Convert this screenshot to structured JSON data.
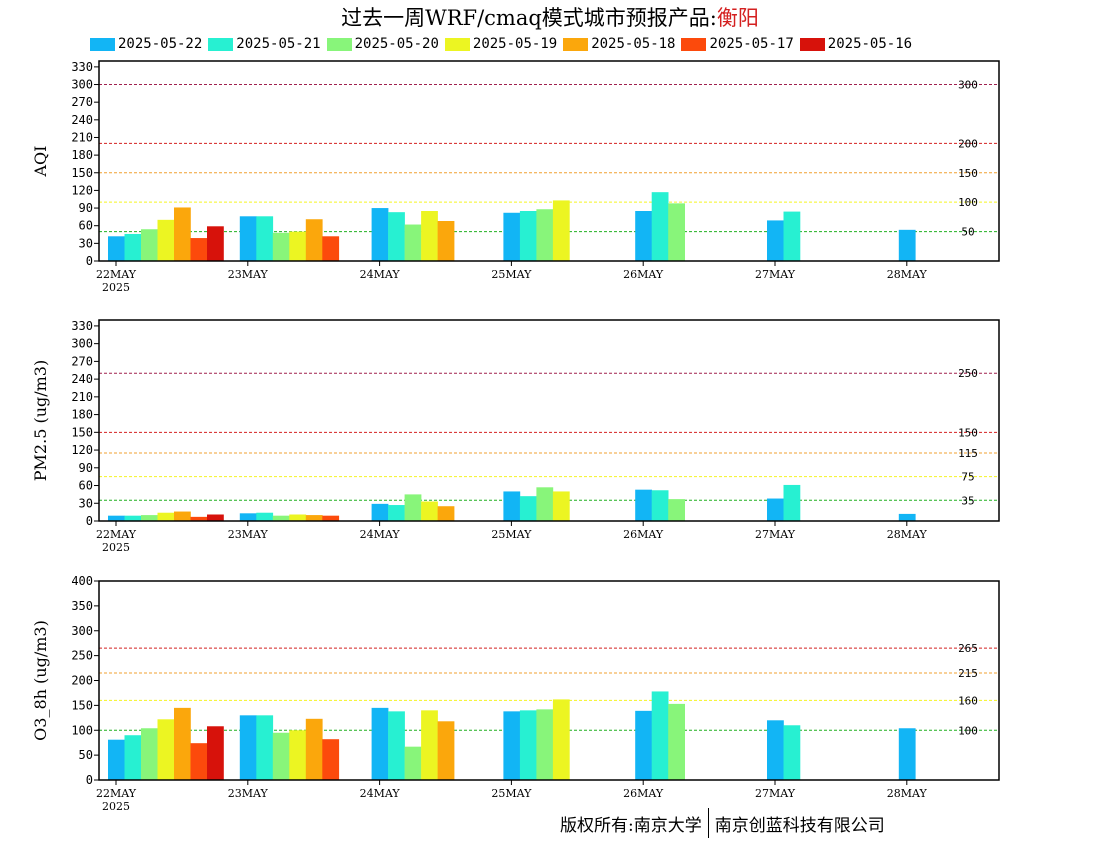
{
  "title": {
    "prefix": "过去一周WRF/cmaq模式城市预报产品:",
    "city": "衡阳",
    "city_color": "#d42020"
  },
  "footer": {
    "left": "版权所有:南京大学",
    "right": "南京创蓝科技有限公司"
  },
  "series_legend": [
    {
      "name": "2025-05-22",
      "color": "#12b5f5"
    },
    {
      "name": "2025-05-21",
      "color": "#27f0d2"
    },
    {
      "name": "2025-05-20",
      "color": "#88f57a"
    },
    {
      "name": "2025-05-19",
      "color": "#ecf522"
    },
    {
      "name": "2025-05-18",
      "color": "#fba70c"
    },
    {
      "name": "2025-05-17",
      "color": "#fc4a0c"
    },
    {
      "name": "2025-05-16",
      "color": "#d7120b"
    }
  ],
  "chart_data": [
    {
      "type": "bar",
      "ylabel": "AQI",
      "ylim": [
        0,
        340
      ],
      "yticks": [
        0,
        30,
        60,
        90,
        120,
        150,
        180,
        210,
        240,
        270,
        300,
        330
      ],
      "categories": [
        "22MAY",
        "23MAY",
        "24MAY",
        "25MAY",
        "26MAY",
        "27MAY",
        "28MAY"
      ],
      "first_category_sublabel": "2025",
      "thresholds": [
        {
          "value": 300,
          "label": "300",
          "color": "#a0204f"
        },
        {
          "value": 200,
          "label": "200",
          "color": "#d42020"
        },
        {
          "value": 150,
          "label": "150",
          "color": "#f0a030"
        },
        {
          "value": 100,
          "label": "100",
          "color": "#f5f520"
        },
        {
          "value": 50,
          "label": "50",
          "color": "#20b020"
        }
      ],
      "series": [
        {
          "name": "2025-05-22",
          "values": [
            42,
            76,
            90,
            82,
            85,
            69,
            53
          ]
        },
        {
          "name": "2025-05-21",
          "values": [
            46,
            76,
            83,
            85,
            117,
            84,
            null
          ]
        },
        {
          "name": "2025-05-20",
          "values": [
            54,
            48,
            62,
            88,
            98,
            null,
            null
          ]
        },
        {
          "name": "2025-05-19",
          "values": [
            70,
            50,
            85,
            103,
            null,
            null,
            null
          ]
        },
        {
          "name": "2025-05-18",
          "values": [
            91,
            71,
            68,
            null,
            null,
            null,
            null
          ]
        },
        {
          "name": "2025-05-17",
          "values": [
            39,
            42,
            null,
            null,
            null,
            null,
            null
          ]
        },
        {
          "name": "2025-05-16",
          "values": [
            59,
            null,
            null,
            null,
            null,
            null,
            null
          ]
        }
      ]
    },
    {
      "type": "bar",
      "ylabel": "PM2.5 (ug/m3)",
      "ylim": [
        0,
        340
      ],
      "yticks": [
        0,
        30,
        60,
        90,
        120,
        150,
        180,
        210,
        240,
        270,
        300,
        330
      ],
      "categories": [
        "22MAY",
        "23MAY",
        "24MAY",
        "25MAY",
        "26MAY",
        "27MAY",
        "28MAY"
      ],
      "first_category_sublabel": "2025",
      "thresholds": [
        {
          "value": 250,
          "label": "250",
          "color": "#a0204f"
        },
        {
          "value": 150,
          "label": "150",
          "color": "#d42020"
        },
        {
          "value": 115,
          "label": "115",
          "color": "#f0a030"
        },
        {
          "value": 75,
          "label": "75",
          "color": "#f5f520"
        },
        {
          "value": 35,
          "label": "35",
          "color": "#20b020"
        }
      ],
      "series": [
        {
          "name": "2025-05-22",
          "values": [
            9,
            13,
            29,
            50,
            53,
            38,
            12
          ]
        },
        {
          "name": "2025-05-21",
          "values": [
            9,
            14,
            27,
            42,
            52,
            61,
            null
          ]
        },
        {
          "name": "2025-05-20",
          "values": [
            10,
            9,
            45,
            57,
            37,
            null,
            null
          ]
        },
        {
          "name": "2025-05-19",
          "values": [
            14,
            11,
            33,
            50,
            null,
            null,
            null
          ]
        },
        {
          "name": "2025-05-18",
          "values": [
            16,
            10,
            25,
            null,
            null,
            null,
            null
          ]
        },
        {
          "name": "2025-05-17",
          "values": [
            7,
            9,
            null,
            null,
            null,
            null,
            null
          ]
        },
        {
          "name": "2025-05-16",
          "values": [
            11,
            null,
            null,
            null,
            null,
            null,
            null
          ]
        }
      ]
    },
    {
      "type": "bar",
      "ylabel": "O3_8h (ug/m3)",
      "ylim": [
        0,
        400
      ],
      "yticks": [
        0,
        50,
        100,
        150,
        200,
        250,
        300,
        350,
        400
      ],
      "categories": [
        "22MAY",
        "23MAY",
        "24MAY",
        "25MAY",
        "26MAY",
        "27MAY",
        "28MAY"
      ],
      "first_category_sublabel": "2025",
      "thresholds": [
        {
          "value": 265,
          "label": "265",
          "color": "#d42020"
        },
        {
          "value": 215,
          "label": "215",
          "color": "#f0a030"
        },
        {
          "value": 160,
          "label": "160",
          "color": "#f5f520"
        },
        {
          "value": 100,
          "label": "100",
          "color": "#20b020"
        }
      ],
      "series": [
        {
          "name": "2025-05-22",
          "values": [
            81,
            130,
            145,
            138,
            139,
            120,
            104
          ]
        },
        {
          "name": "2025-05-21",
          "values": [
            90,
            130,
            138,
            140,
            178,
            110,
            null
          ]
        },
        {
          "name": "2025-05-20",
          "values": [
            104,
            95,
            67,
            142,
            153,
            null,
            null
          ]
        },
        {
          "name": "2025-05-19",
          "values": [
            122,
            100,
            140,
            162,
            null,
            null,
            null
          ]
        },
        {
          "name": "2025-05-18",
          "values": [
            145,
            123,
            118,
            null,
            null,
            null,
            null
          ]
        },
        {
          "name": "2025-05-17",
          "values": [
            74,
            82,
            null,
            null,
            null,
            null,
            null
          ]
        },
        {
          "name": "2025-05-16",
          "values": [
            108,
            null,
            null,
            null,
            null,
            null,
            null
          ]
        }
      ]
    }
  ]
}
